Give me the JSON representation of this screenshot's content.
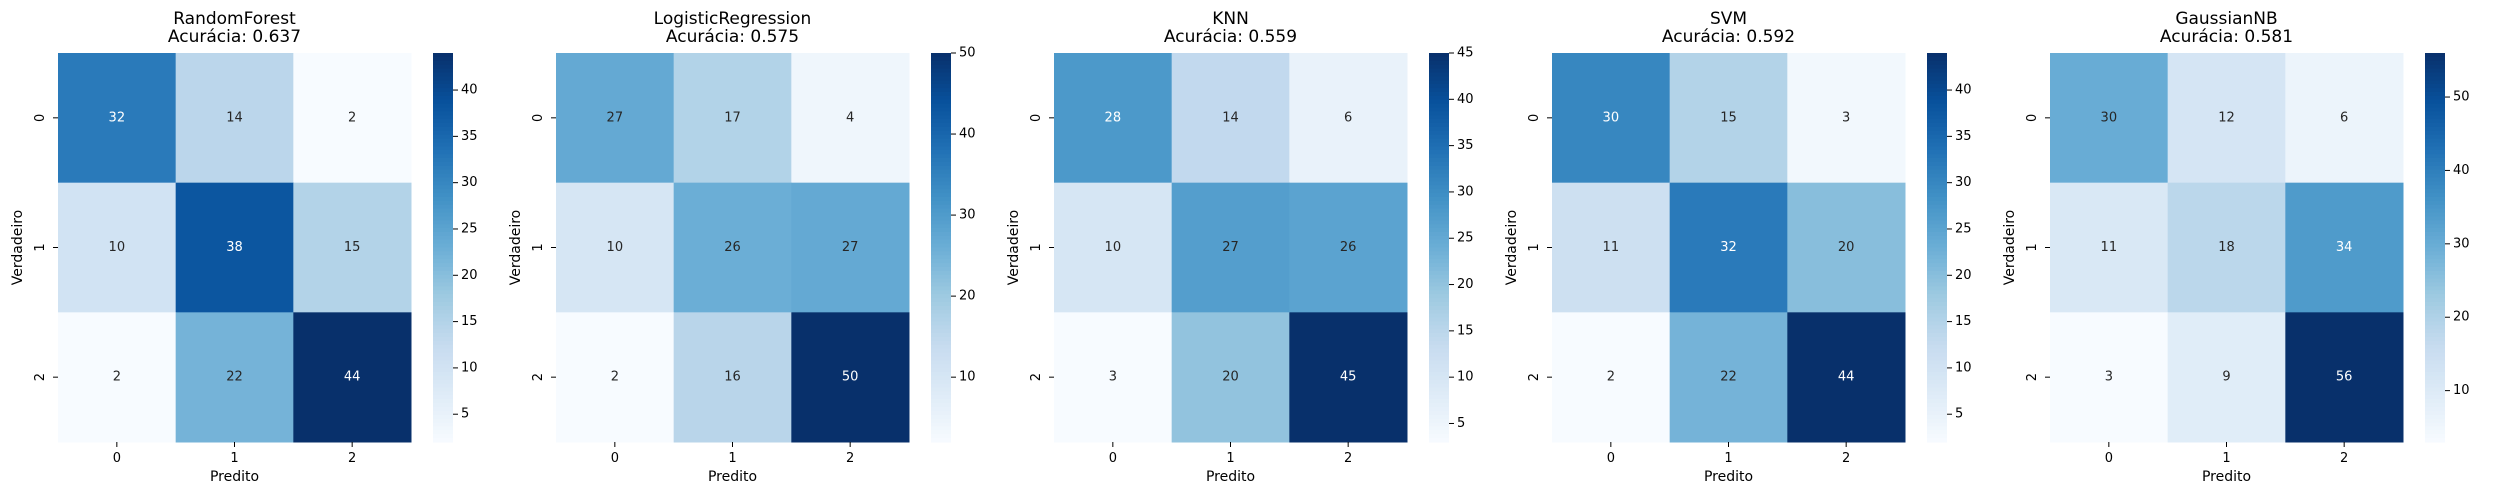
{
  "colormap": {
    "low": "#f7fbff",
    "high": "#08306b",
    "name": "Blues"
  },
  "chart_data": [
    {
      "type": "heatmap",
      "title": "RandomForest",
      "subtitle": "Acurácia: 0.637",
      "xlabel": "Predito",
      "ylabel": "Verdadeiro",
      "x_categories": [
        "0",
        "1",
        "2"
      ],
      "y_categories": [
        "0",
        "1",
        "2"
      ],
      "values": [
        [
          32,
          14,
          2
        ],
        [
          10,
          38,
          15
        ],
        [
          2,
          22,
          44
        ]
      ],
      "colorbar": {
        "min": 2,
        "max": 44,
        "ticks": [
          5,
          10,
          15,
          20,
          25,
          30,
          35,
          40
        ]
      }
    },
    {
      "type": "heatmap",
      "title": "LogisticRegression",
      "subtitle": "Acurácia: 0.575",
      "xlabel": "Predito",
      "ylabel": "Verdadeiro",
      "x_categories": [
        "0",
        "1",
        "2"
      ],
      "y_categories": [
        "0",
        "1",
        "2"
      ],
      "values": [
        [
          27,
          17,
          4
        ],
        [
          10,
          26,
          27
        ],
        [
          2,
          16,
          50
        ]
      ],
      "colorbar": {
        "min": 2,
        "max": 50,
        "ticks": [
          10,
          20,
          30,
          40,
          50
        ]
      }
    },
    {
      "type": "heatmap",
      "title": "KNN",
      "subtitle": "Acurácia: 0.559",
      "xlabel": "Predito",
      "ylabel": "Verdadeiro",
      "x_categories": [
        "0",
        "1",
        "2"
      ],
      "y_categories": [
        "0",
        "1",
        "2"
      ],
      "values": [
        [
          28,
          14,
          6
        ],
        [
          10,
          27,
          26
        ],
        [
          3,
          20,
          45
        ]
      ],
      "colorbar": {
        "min": 3,
        "max": 45,
        "ticks": [
          5,
          10,
          15,
          20,
          25,
          30,
          35,
          40,
          45
        ]
      }
    },
    {
      "type": "heatmap",
      "title": "SVM",
      "subtitle": "Acurácia: 0.592",
      "xlabel": "Predito",
      "ylabel": "Verdadeiro",
      "x_categories": [
        "0",
        "1",
        "2"
      ],
      "y_categories": [
        "0",
        "1",
        "2"
      ],
      "values": [
        [
          30,
          15,
          3
        ],
        [
          11,
          32,
          20
        ],
        [
          2,
          22,
          44
        ]
      ],
      "colorbar": {
        "min": 2,
        "max": 44,
        "ticks": [
          5,
          10,
          15,
          20,
          25,
          30,
          35,
          40
        ]
      }
    },
    {
      "type": "heatmap",
      "title": "GaussianNB",
      "subtitle": "Acurácia: 0.581",
      "xlabel": "Predito",
      "ylabel": "Verdadeiro",
      "x_categories": [
        "0",
        "1",
        "2"
      ],
      "y_categories": [
        "0",
        "1",
        "2"
      ],
      "values": [
        [
          30,
          12,
          6
        ],
        [
          11,
          18,
          34
        ],
        [
          3,
          9,
          56
        ]
      ],
      "colorbar": {
        "min": 3,
        "max": 56,
        "ticks": [
          10,
          20,
          30,
          40,
          50
        ]
      }
    }
  ]
}
